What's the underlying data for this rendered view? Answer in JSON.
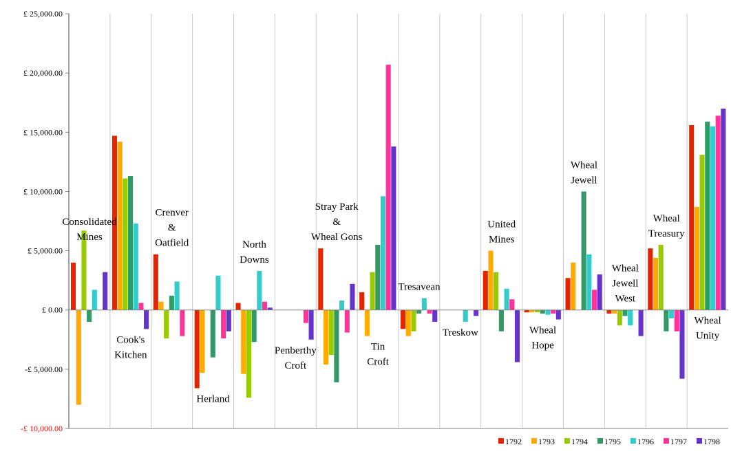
{
  "chart_data": {
    "type": "bar",
    "title": "",
    "xlabel": "",
    "ylabel": "",
    "ylim": [
      -10000,
      25000
    ],
    "y_ticks": [
      {
        "value": 25000,
        "label": "£ 25,000.00"
      },
      {
        "value": 20000,
        "label": "£ 20,000.00"
      },
      {
        "value": 15000,
        "label": "£ 15,000.00"
      },
      {
        "value": 10000,
        "label": "£ 10,000.00"
      },
      {
        "value": 5000,
        "label": "£ 5,000.00"
      },
      {
        "value": 0,
        "label": "£ 0.00"
      },
      {
        "value": -5000,
        "label": "-£ 5,000.00"
      },
      {
        "value": -10000,
        "label": "-£ 10,000.00"
      }
    ],
    "negative_min_label_color": "#ff0000",
    "legend_position": "bottom-right",
    "grid": "vertical-category-separators",
    "categories": [
      "Consolidated Mines",
      "Cook's Kitchen",
      "Crenver & Oatfield",
      "Herland",
      "North Downs",
      "Penberthy Croft",
      "Stray Park & Wheal Gons",
      "Tin Croft",
      "Tresavean",
      "Treskow",
      "United Mines",
      "Wheal Hope",
      "Wheal Jewell",
      "Wheal Jewell West",
      "Wheal Treasury",
      "Wheal Unity"
    ],
    "category_labels": [
      {
        "lines": [
          "Consolidated",
          "Mines"
        ],
        "side": "above"
      },
      {
        "lines": [
          "Cook's",
          "Kitchen"
        ],
        "side": "below"
      },
      {
        "lines": [
          "Crenver",
          "&",
          "Oatfield"
        ],
        "side": "above"
      },
      {
        "lines": [
          "Herland"
        ],
        "side": "below"
      },
      {
        "lines": [
          "North",
          "Downs"
        ],
        "side": "above"
      },
      {
        "lines": [
          "Penberthy",
          "Croft"
        ],
        "side": "below"
      },
      {
        "lines": [
          "Stray Park",
          "&",
          "Wheal Gons"
        ],
        "side": "above"
      },
      {
        "lines": [
          "Tin",
          "Croft"
        ],
        "side": "below"
      },
      {
        "lines": [
          "Tresavean"
        ],
        "side": "above"
      },
      {
        "lines": [
          "Treskow"
        ],
        "side": "below"
      },
      {
        "lines": [
          "United",
          "Mines"
        ],
        "side": "above"
      },
      {
        "lines": [
          "Wheal",
          "Hope"
        ],
        "side": "below"
      },
      {
        "lines": [
          "Wheal",
          "Jewell"
        ],
        "side": "above"
      },
      {
        "lines": [
          "Wheal",
          "Jewell",
          "West"
        ],
        "side": "above"
      },
      {
        "lines": [
          "Wheal",
          "Treasury"
        ],
        "side": "above"
      },
      {
        "lines": [
          "Wheal",
          "Unity"
        ],
        "side": "below"
      }
    ],
    "series": [
      {
        "name": "1792",
        "color": "#e52400",
        "values": [
          4000,
          14700,
          4700,
          -6600,
          600,
          0,
          5200,
          1500,
          -1600,
          0,
          3300,
          -200,
          2700,
          -300,
          5200,
          15600
        ]
      },
      {
        "name": "1793",
        "color": "#ffaa00",
        "values": [
          -8000,
          14200,
          700,
          -5300,
          -5400,
          0,
          -4600,
          -2200,
          -2200,
          0,
          5000,
          -200,
          4000,
          -300,
          4400,
          8700
        ]
      },
      {
        "name": "1794",
        "color": "#99cc00",
        "values": [
          6700,
          11100,
          -2400,
          0,
          -7400,
          0,
          -3800,
          3200,
          -1800,
          0,
          3200,
          -200,
          0,
          -1300,
          5500,
          13100
        ]
      },
      {
        "name": "1795",
        "color": "#339966",
        "values": [
          -1000,
          11300,
          1200,
          -4000,
          -2700,
          0,
          -6100,
          5500,
          -300,
          0,
          -1800,
          -300,
          10000,
          -500,
          -1800,
          15900
        ]
      },
      {
        "name": "1796",
        "color": "#33cccc",
        "values": [
          1700,
          7300,
          2400,
          2900,
          3300,
          0,
          800,
          9600,
          1000,
          -1000,
          1800,
          -400,
          4700,
          -1300,
          -700,
          15500
        ]
      },
      {
        "name": "1797",
        "color": "#ff3399",
        "values": [
          0,
          600,
          -2200,
          -2400,
          700,
          -1100,
          -1900,
          20700,
          -300,
          0,
          900,
          -300,
          1700,
          0,
          -1800,
          16400
        ]
      },
      {
        "name": "1798",
        "color": "#6633cc",
        "values": [
          3200,
          -1600,
          0,
          -1800,
          200,
          -2500,
          2200,
          13800,
          -1000,
          -500,
          -4400,
          -800,
          3000,
          -2200,
          -5800,
          17000
        ]
      }
    ]
  }
}
